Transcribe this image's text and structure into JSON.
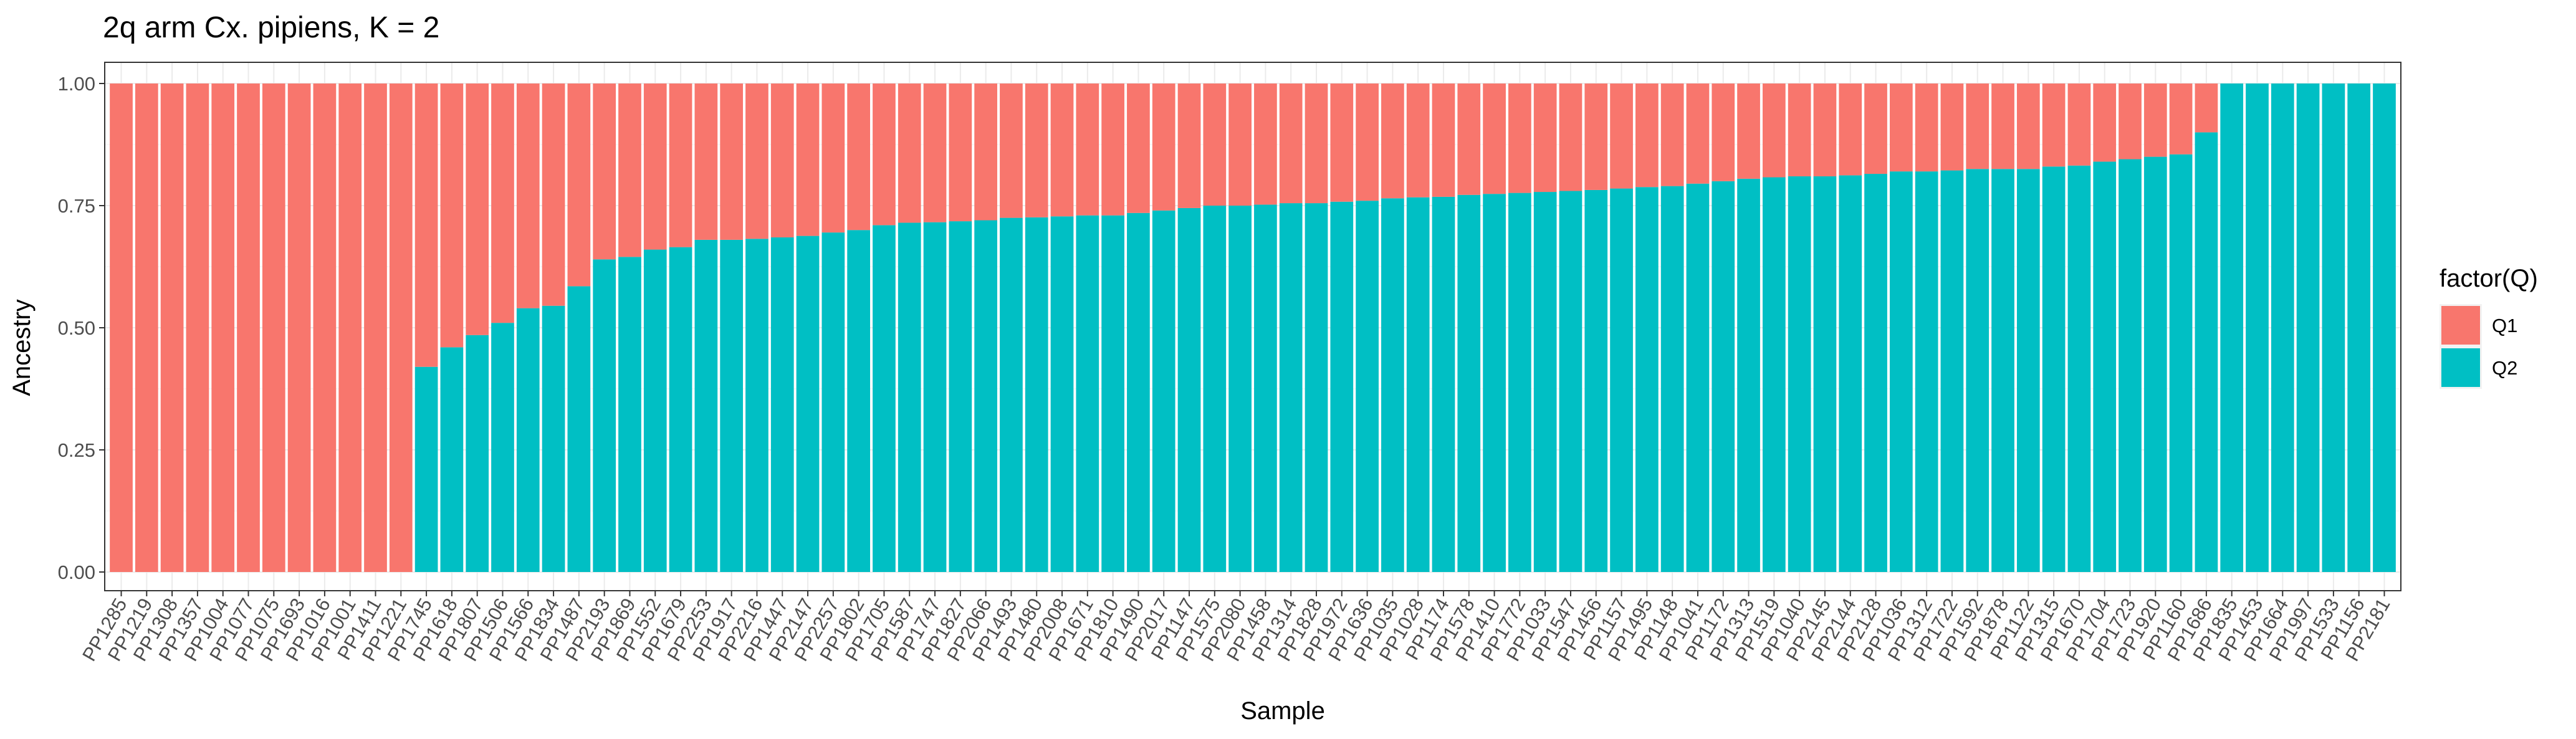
{
  "chart_data": {
    "type": "bar",
    "stacked": true,
    "title": "2q arm Cx. pipiens, K = 2",
    "xlabel": "Sample",
    "ylabel": "Ancestry",
    "ylim": [
      0,
      1
    ],
    "yticks": [
      "0.00",
      "0.25",
      "0.50",
      "0.75",
      "1.00"
    ],
    "grid": true,
    "legend": {
      "title": "factor(Q)",
      "position": "right"
    },
    "categories": [
      "PP1285",
      "PP1219",
      "PP1308",
      "PP1357",
      "PP1004",
      "PP1077",
      "PP1075",
      "PP1693",
      "PP1016",
      "PP1001",
      "PP1411",
      "PP1221",
      "PP1745",
      "PP1618",
      "PP1807",
      "PP1506",
      "PP1566",
      "PP1834",
      "PP1487",
      "PP2193",
      "PP1869",
      "PP1552",
      "PP1679",
      "PP2253",
      "PP1917",
      "PP2216",
      "PP1447",
      "PP2147",
      "PP2257",
      "PP1802",
      "PP1705",
      "PP1587",
      "PP1747",
      "PP1827",
      "PP2066",
      "PP1493",
      "PP1480",
      "PP2008",
      "PP1671",
      "PP1810",
      "PP1490",
      "PP2017",
      "PP1147",
      "PP1575",
      "PP2080",
      "PP1458",
      "PP1314",
      "PP1828",
      "PP1972",
      "PP1636",
      "PP1035",
      "PP1028",
      "PP1174",
      "PP1578",
      "PP1410",
      "PP1772",
      "PP1033",
      "PP1547",
      "PP1456",
      "PP1157",
      "PP1495",
      "PP1148",
      "PP1041",
      "PP1172",
      "PP1313",
      "PP1519",
      "PP1040",
      "PP2145",
      "PP2144",
      "PP2128",
      "PP1036",
      "PP1312",
      "PP1722",
      "PP1592",
      "PP1878",
      "PP1122",
      "PP1315",
      "PP1670",
      "PP1704",
      "PP1723",
      "PP1920",
      "PP1160",
      "PP1686",
      "PP1835",
      "PP1453",
      "PP1664",
      "PP1997",
      "PP1533",
      "PP1156",
      "PP2181"
    ],
    "series": [
      {
        "name": "Q1",
        "color": "#F8766D",
        "values": [
          1,
          1,
          1,
          1,
          1,
          1,
          1,
          1,
          1,
          1,
          1,
          1,
          0.58,
          0.54,
          0.515,
          0.49,
          0.46,
          0.455,
          0.415,
          0.36,
          0.355,
          0.34,
          0.335,
          0.32,
          0.32,
          0.318,
          0.315,
          0.312,
          0.305,
          0.3,
          0.29,
          0.285,
          0.284,
          0.282,
          0.28,
          0.275,
          0.274,
          0.272,
          0.27,
          0.27,
          0.265,
          0.26,
          0.255,
          0.25,
          0.25,
          0.248,
          0.245,
          0.245,
          0.242,
          0.24,
          0.235,
          0.233,
          0.232,
          0.228,
          0.226,
          0.224,
          0.222,
          0.22,
          0.218,
          0.215,
          0.212,
          0.21,
          0.205,
          0.2,
          0.195,
          0.192,
          0.19,
          0.19,
          0.188,
          0.185,
          0.18,
          0.18,
          0.178,
          0.175,
          0.175,
          0.175,
          0.17,
          0.168,
          0.16,
          0.155,
          0.15,
          0.145,
          0.1,
          0,
          0,
          0,
          0,
          0,
          0,
          0
        ]
      },
      {
        "name": "Q2",
        "color": "#00BFC4",
        "values": [
          0,
          0,
          0,
          0,
          0,
          0,
          0,
          0,
          0,
          0,
          0,
          0,
          0.42,
          0.46,
          0.485,
          0.51,
          0.54,
          0.545,
          0.585,
          0.64,
          0.645,
          0.66,
          0.665,
          0.68,
          0.68,
          0.682,
          0.685,
          0.688,
          0.695,
          0.7,
          0.71,
          0.715,
          0.716,
          0.718,
          0.72,
          0.725,
          0.726,
          0.728,
          0.73,
          0.73,
          0.735,
          0.74,
          0.745,
          0.75,
          0.75,
          0.752,
          0.755,
          0.755,
          0.758,
          0.76,
          0.765,
          0.767,
          0.768,
          0.772,
          0.774,
          0.776,
          0.778,
          0.78,
          0.782,
          0.785,
          0.788,
          0.79,
          0.795,
          0.8,
          0.805,
          0.808,
          0.81,
          0.81,
          0.812,
          0.815,
          0.82,
          0.82,
          0.822,
          0.825,
          0.825,
          0.825,
          0.83,
          0.832,
          0.84,
          0.845,
          0.85,
          0.855,
          0.9,
          1,
          1,
          1,
          1,
          1,
          1,
          1
        ]
      }
    ]
  }
}
